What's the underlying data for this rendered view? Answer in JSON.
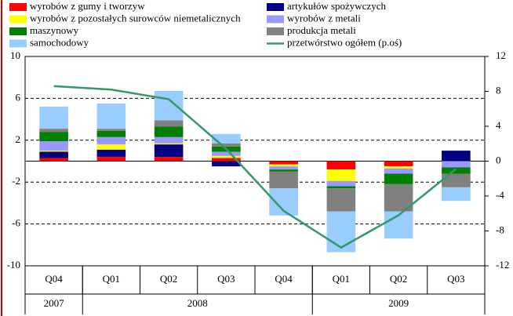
{
  "chart_data": {
    "type": "bar",
    "categories": [
      "Q04",
      "Q01",
      "Q02",
      "Q03",
      "Q04",
      "Q01",
      "Q02",
      "Q03"
    ],
    "year_groups": [
      {
        "label": "2007",
        "span": 1
      },
      {
        "label": "2008",
        "span": 4
      },
      {
        "label": "2009",
        "span": 3
      }
    ],
    "series": [
      {
        "name": "wyrobów z gumy i tworzyw",
        "color": "#ff0000",
        "values": [
          0.3,
          0.4,
          0.4,
          0.3,
          -0.3,
          -0.8,
          -0.5,
          0
        ]
      },
      {
        "name": "artykułów spożywczych",
        "color": "#000080",
        "values": [
          0.6,
          0.7,
          1.2,
          -0.5,
          0,
          0,
          0,
          1.0
        ]
      },
      {
        "name": "wyrobów z pozostałych surowców niemetalicznych",
        "color": "#ffff00",
        "values": [
          0.1,
          0.5,
          0.1,
          0.2,
          -0.2,
          -1.1,
          -0.2,
          0
        ]
      },
      {
        "name": "wyrobów z metali",
        "color": "#9999ff",
        "values": [
          0.9,
          0.7,
          0.6,
          0.4,
          -0.3,
          -0.5,
          -0.5,
          -0.6
        ]
      },
      {
        "name": "maszynowy",
        "color": "#008000",
        "values": [
          0.9,
          0.6,
          1.0,
          0.5,
          -0.2,
          -0.2,
          -1.0,
          -0.6
        ]
      },
      {
        "name": "produkcja metali",
        "color": "#808080",
        "values": [
          0.3,
          0.2,
          0.6,
          0.3,
          -1.6,
          -2.2,
          -2.6,
          -1.3
        ]
      },
      {
        "name": "samochodowy",
        "color": "#99ccff",
        "values": [
          2.1,
          2.4,
          2.8,
          0.9,
          -2.6,
          -3.9,
          -2.6,
          -1.3
        ]
      },
      {
        "name": "przetwórstwo ogółem (p.oś)",
        "color": "#339966",
        "type": "line",
        "axis": "y2",
        "values": [
          8.6,
          8.2,
          7.1,
          1.4,
          -5.7,
          -9.9,
          -6.2,
          -0.9
        ]
      }
    ],
    "ylim": [
      -10,
      10
    ],
    "yticks": [
      10,
      6,
      2,
      -2,
      -6,
      -10
    ],
    "y2lim": [
      -12,
      12
    ],
    "y2ticks": [
      12,
      8,
      4,
      0,
      -4,
      -8,
      -12
    ],
    "grid": true
  }
}
